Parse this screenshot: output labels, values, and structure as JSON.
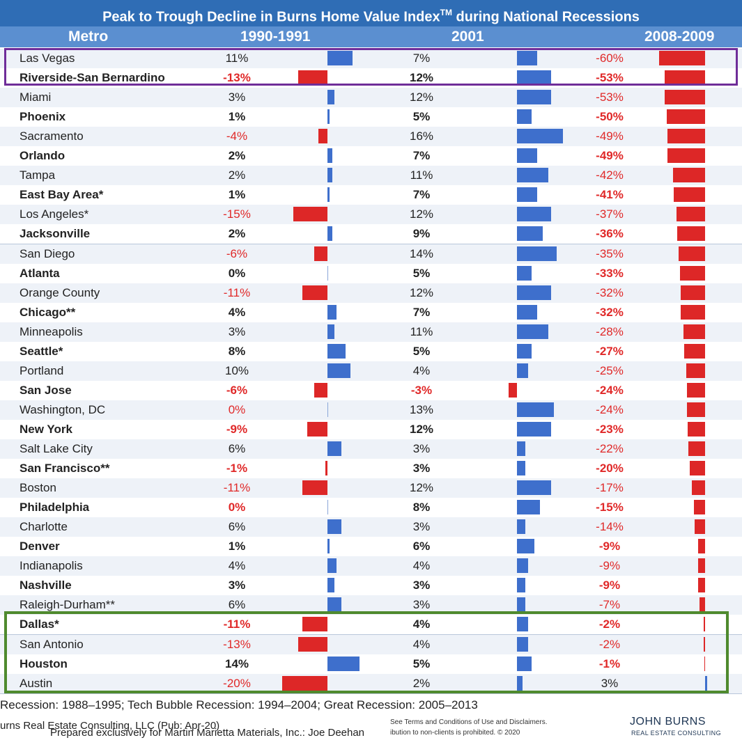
{
  "title": "Peak to Trough Decline in Burns Home Value Index",
  "title_sup": "TM",
  "title_suffix": " during National Recessions",
  "headers": {
    "metro": "Metro",
    "p1": "1990-1991",
    "p2": "2001",
    "p3": "2008-2009"
  },
  "colors": {
    "positive": "#3e6fcc",
    "negative": "#dd2727",
    "title_bg": "#2f6db5",
    "header_bg": "#5b8fd0",
    "highlight_top": "#6f2d99",
    "highlight_bottom": "#4f8a2e"
  },
  "chart_data": {
    "type": "table",
    "columns": [
      "Metro",
      "1990-1991",
      "2001",
      "2008-2009"
    ],
    "rows": [
      {
        "metro": "Las Vegas",
        "v1": 11,
        "v2": 7,
        "v3": -60,
        "bold": false
      },
      {
        "metro": "Riverside-San Bernardino",
        "v1": -13,
        "v2": 12,
        "v3": -53,
        "bold": true
      },
      {
        "metro": "Miami",
        "v1": 3,
        "v2": 12,
        "v3": -53,
        "bold": false
      },
      {
        "metro": "Phoenix",
        "v1": 1,
        "v2": 5,
        "v3": -50,
        "bold": true
      },
      {
        "metro": "Sacramento",
        "v1": -4,
        "v2": 16,
        "v3": -49,
        "bold": false
      },
      {
        "metro": "Orlando",
        "v1": 2,
        "v2": 7,
        "v3": -49,
        "bold": true
      },
      {
        "metro": "Tampa",
        "v1": 2,
        "v2": 11,
        "v3": -42,
        "bold": false
      },
      {
        "metro": "East Bay Area*",
        "v1": 1,
        "v2": 7,
        "v3": -41,
        "bold": true
      },
      {
        "metro": "Los Angeles*",
        "v1": -15,
        "v2": 12,
        "v3": -37,
        "bold": false
      },
      {
        "metro": "Jacksonville",
        "v1": 2,
        "v2": 9,
        "v3": -36,
        "bold": true
      },
      {
        "metro": "San Diego",
        "v1": -6,
        "v2": 14,
        "v3": -35,
        "bold": false
      },
      {
        "metro": "Atlanta",
        "v1": 0,
        "v2": 5,
        "v3": -33,
        "bold": true
      },
      {
        "metro": "Orange County",
        "v1": -11,
        "v2": 12,
        "v3": -32,
        "bold": false
      },
      {
        "metro": "Chicago**",
        "v1": 4,
        "v2": 7,
        "v3": -32,
        "bold": true
      },
      {
        "metro": "Minneapolis",
        "v1": 3,
        "v2": 11,
        "v3": -28,
        "bold": false
      },
      {
        "metro": "Seattle*",
        "v1": 8,
        "v2": 5,
        "v3": -27,
        "bold": true
      },
      {
        "metro": "Portland",
        "v1": 10,
        "v2": 4,
        "v3": -25,
        "bold": false
      },
      {
        "metro": "San Jose",
        "v1": -6,
        "v2": -3,
        "v3": -24,
        "bold": true
      },
      {
        "metro": "Washington, DC",
        "v1": 0,
        "v2": 13,
        "v3": -24,
        "bold": false,
        "v1neg": true
      },
      {
        "metro": "New York",
        "v1": -9,
        "v2": 12,
        "v3": -23,
        "bold": true
      },
      {
        "metro": "Salt Lake City",
        "v1": 6,
        "v2": 3,
        "v3": -22,
        "bold": false
      },
      {
        "metro": "San Francisco**",
        "v1": -1,
        "v2": 3,
        "v3": -20,
        "bold": true
      },
      {
        "metro": "Boston",
        "v1": -11,
        "v2": 12,
        "v3": -17,
        "bold": false
      },
      {
        "metro": "Philadelphia",
        "v1": 0,
        "v2": 8,
        "v3": -15,
        "bold": true,
        "v1neg": true
      },
      {
        "metro": "Charlotte",
        "v1": 6,
        "v2": 3,
        "v3": -14,
        "bold": false
      },
      {
        "metro": "Denver",
        "v1": 1,
        "v2": 6,
        "v3": -9,
        "bold": true
      },
      {
        "metro": "Indianapolis",
        "v1": 4,
        "v2": 4,
        "v3": -9,
        "bold": false
      },
      {
        "metro": "Nashville",
        "v1": 3,
        "v2": 3,
        "v3": -9,
        "bold": true
      },
      {
        "metro": "Raleigh-Durham**",
        "v1": 6,
        "v2": 3,
        "v3": -7,
        "bold": false
      },
      {
        "metro": "Dallas*",
        "v1": -11,
        "v2": 4,
        "v3": -2,
        "bold": true
      },
      {
        "metro": "San Antonio",
        "v1": -13,
        "v2": 4,
        "v3": -2,
        "bold": false
      },
      {
        "metro": "Houston",
        "v1": 14,
        "v2": 5,
        "v3": -1,
        "bold": true
      },
      {
        "metro": "Austin",
        "v1": -20,
        "v2": 2,
        "v3": 3,
        "bold": false
      }
    ]
  },
  "footnote": "Recession: 1988–1995; Tech Bubble Recession: 1994–2004; Great Recession: 2005–2013",
  "source": "urns Real Estate Consulting, LLC (Pub: Apr-20)",
  "prepared": "Prepared exclusively for Martin Marietta Materials, Inc.: Joe Deehan",
  "terms_line1": "See Terms and Conditions of Use and Disclaimers.",
  "terms_line2": "ibution to non-clients is prohibited. © 2020",
  "logo_line1": "JOHN  BURNS",
  "logo_line2": "REAL ESTATE CONSULTING"
}
